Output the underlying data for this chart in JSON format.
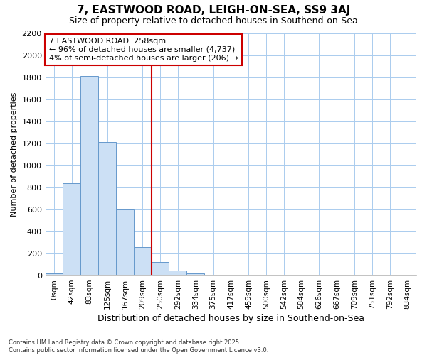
{
  "title": "7, EASTWOOD ROAD, LEIGH-ON-SEA, SS9 3AJ",
  "subtitle": "Size of property relative to detached houses in Southend-on-Sea",
  "xlabel": "Distribution of detached houses by size in Southend-on-Sea",
  "ylabel": "Number of detached properties",
  "footnote1": "Contains HM Land Registry data © Crown copyright and database right 2025.",
  "footnote2": "Contains public sector information licensed under the Open Government Licence v3.0.",
  "annotation_title": "7 EASTWOOD ROAD: 258sqm",
  "annotation_line1": "← 96% of detached houses are smaller (4,737)",
  "annotation_line2": "4% of semi-detached houses are larger (206) →",
  "categories": [
    "0sqm",
    "42sqm",
    "83sqm",
    "125sqm",
    "167sqm",
    "209sqm",
    "250sqm",
    "292sqm",
    "334sqm",
    "375sqm",
    "417sqm",
    "459sqm",
    "500sqm",
    "542sqm",
    "584sqm",
    "626sqm",
    "667sqm",
    "709sqm",
    "751sqm",
    "792sqm",
    "834sqm"
  ],
  "values": [
    20,
    840,
    1810,
    1210,
    600,
    255,
    120,
    45,
    20,
    0,
    0,
    0,
    0,
    0,
    0,
    0,
    0,
    0,
    0,
    0,
    0
  ],
  "bar_color": "#cce0f5",
  "bar_edge_color": "#6699cc",
  "highlight_color": "#cc0000",
  "annotation_box_color": "#cc0000",
  "plot_bg_color": "#ffffff",
  "fig_bg_color": "#ffffff",
  "grid_color": "#aaccee",
  "ylim": [
    0,
    2200
  ],
  "yticks": [
    0,
    200,
    400,
    600,
    800,
    1000,
    1200,
    1400,
    1600,
    1800,
    2000,
    2200
  ],
  "red_line_x": 6
}
